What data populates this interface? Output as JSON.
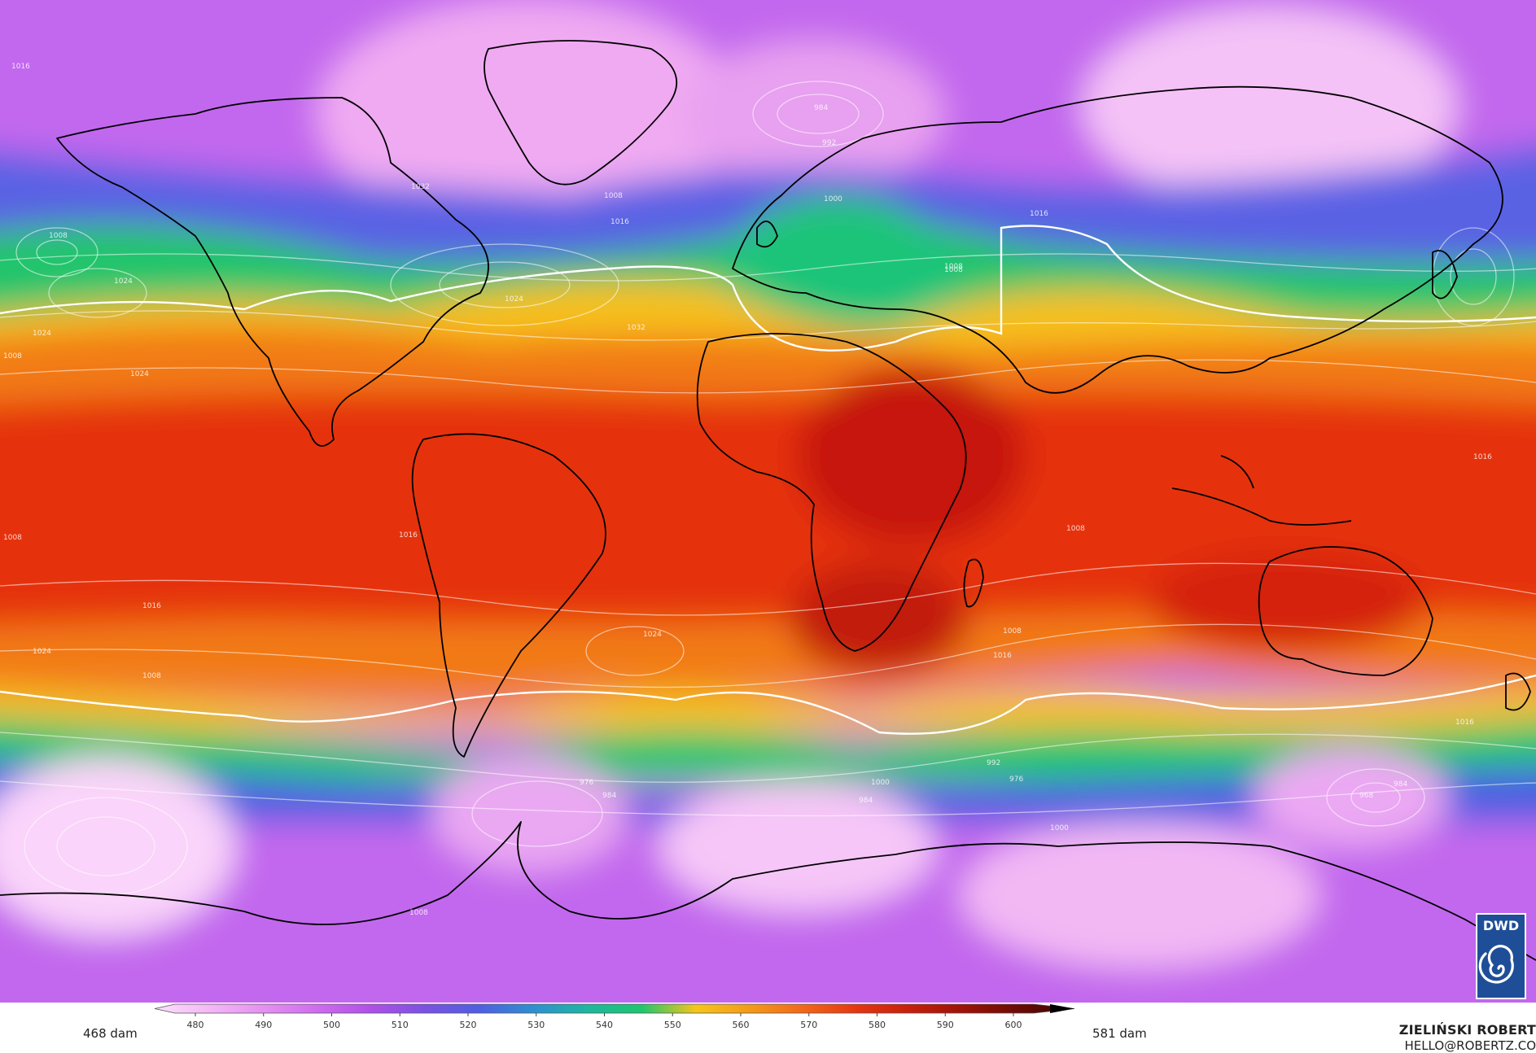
{
  "colorbar": {
    "min_label": "468 dam",
    "max_label": "581 dam",
    "ticks": [
      "480",
      "490",
      "500",
      "510",
      "520",
      "530",
      "540",
      "550",
      "560",
      "570",
      "580",
      "590",
      "600"
    ]
  },
  "credit": {
    "author": "ZIELIŃSKI ROBERT",
    "contact": "HELLO@ROBERTZ.CO"
  },
  "logo": {
    "text": "DWD"
  },
  "contours": {
    "labels": [
      "1016",
      "1008",
      "1032",
      "1024",
      "1016",
      "1008",
      "1000",
      "984",
      "992",
      "1008",
      "1016",
      "1008",
      "1024",
      "1032",
      "1024",
      "1008",
      "1016",
      "1024",
      "1016",
      "1008",
      "1024",
      "1008",
      "1016",
      "1024",
      "1008",
      "1016",
      "1008",
      "992",
      "976",
      "984",
      "1000",
      "984",
      "976",
      "968",
      "984",
      "1008",
      "1000",
      "1016"
    ]
  },
  "colors": {
    "pink": "#f2b8f4",
    "violet": "#b755ea",
    "blue": "#4a62e0",
    "green": "#1ec66e",
    "yellow": "#f6c21a",
    "orange": "#f47a12",
    "red": "#e8300e",
    "darkred": "#b8170a"
  }
}
